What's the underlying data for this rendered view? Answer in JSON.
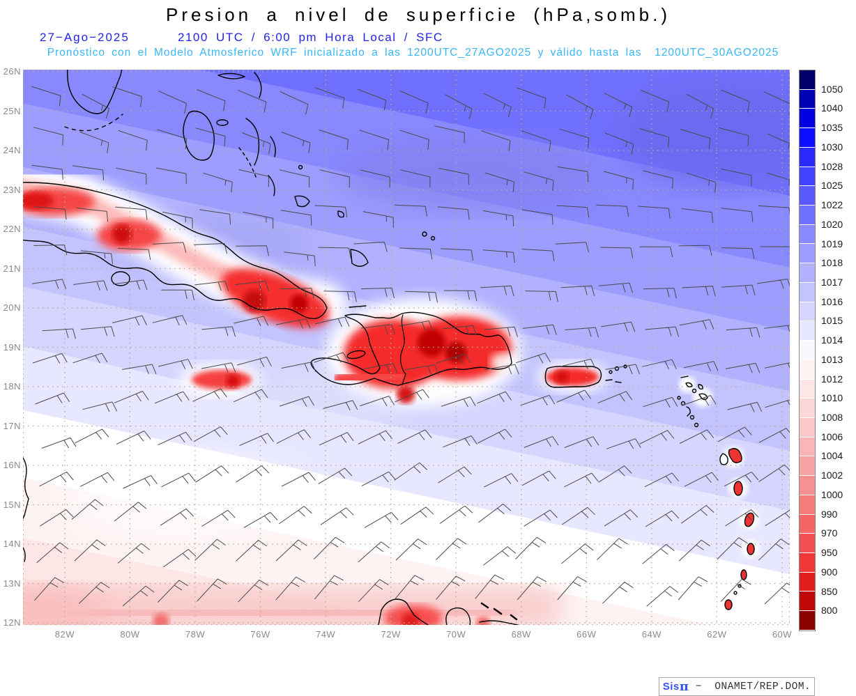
{
  "header": {
    "title": "Presion a nivel de superficie (hPa,somb.)",
    "date": "27−Ago−2025",
    "time_line": "2100 UTC / 6:00 pm Hora Local / SFC",
    "model_line": "Pronóstico con el Modelo Atmosferico WRF inicializado a las 1200UTC_27AGO2025 y válido hasta las  1200UTC_30AGO2025",
    "title_color": "#000000",
    "date_color": "#2222ee",
    "model_color": "#38b6fc"
  },
  "axes": {
    "lat_labels": [
      "26N",
      "25N",
      "24N",
      "23N",
      "22N",
      "21N",
      "20N",
      "19N",
      "18N",
      "17N",
      "16N",
      "15N",
      "14N",
      "13N",
      "12N"
    ],
    "lon_labels": [
      "82W",
      "80W",
      "78W",
      "76W",
      "74W",
      "72W",
      "70W",
      "68W",
      "66W",
      "64W",
      "62W",
      "60W"
    ]
  },
  "colorbar": {
    "unit": "hPa",
    "labels": [
      "1050",
      "1040",
      "1035",
      "1030",
      "1028",
      "1025",
      "1022",
      "1020",
      "1019",
      "1018",
      "1017",
      "1016",
      "1015",
      "1014",
      "1013",
      "1012",
      "1010",
      "1008",
      "1006",
      "1004",
      "1002",
      "1000",
      "990",
      "970",
      "950",
      "900",
      "850",
      "800"
    ],
    "cell_colors": [
      "#000069",
      "#0000b4",
      "#0000e1",
      "#0d0dff",
      "#2a2aff",
      "#4343ff",
      "#5a5aff",
      "#7070ff",
      "#8888ff",
      "#9d9dff",
      "#b1b1ff",
      "#c3c3ff",
      "#d5d5ff",
      "#e7e7ff",
      "#f8f8ff",
      "#fdf3f3",
      "#fde6e6",
      "#fcd7d7",
      "#fbc7c7",
      "#fab6b6",
      "#f9a4a4",
      "#f79090",
      "#f67c7c",
      "#f46666",
      "#f25050",
      "#ef3737",
      "#e21d1d",
      "#c00a0a",
      "#8b0000"
    ]
  },
  "attribution": {
    "brand_sis": "Sis",
    "brand_pi": "π",
    "dash": " −  ",
    "org": "ONAMET/REP.DOM.",
    "brand_color": "#3355f0"
  },
  "map_style": {
    "grid_dot_color": "#b1ad92",
    "barb_color": "#4a4a4a",
    "coast_color": "#000000",
    "band_stop_cells": [
      18,
      17,
      16,
      15,
      14,
      13,
      12,
      11,
      10,
      9,
      8,
      7
    ],
    "band_offsets": [
      0,
      0.055,
      0.115,
      0.185,
      0.26,
      0.345,
      0.425,
      0.5,
      0.575,
      0.65,
      0.73,
      0.82,
      0.92
    ]
  }
}
